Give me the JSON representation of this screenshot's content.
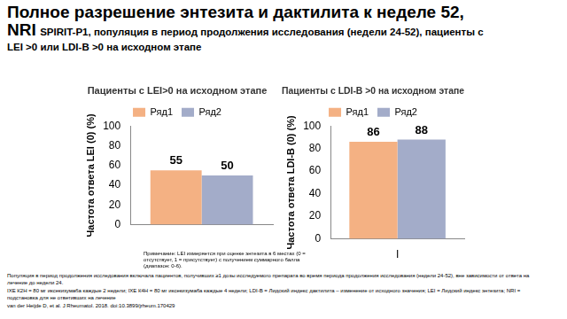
{
  "title": "Полное разрешение энтезита и дактилита к неделе 52, NRI",
  "subtitle": "SPIRIT-P1, популяция в период продолжения исследования (недели 24-52), пациенты с LEI >0 или LDI-B >0 на исходном этапе",
  "chart_data": [
    {
      "type": "bar",
      "title": "Пациенты с LEI>0 на исходном этапе",
      "y_label": "Частота ответа LEI (0) (%)",
      "categories": [
        null
      ],
      "series": [
        {
          "name": "Ряд1",
          "color": "#F4B183",
          "values": [
            55
          ]
        },
        {
          "name": "Ряд2",
          "color": "#A3ACC9",
          "values": [
            50
          ]
        }
      ],
      "ylim": [
        0,
        100
      ],
      "yticks": [
        0,
        20,
        40,
        60,
        80,
        100
      ],
      "grid": false,
      "legend": "top",
      "data_labels": true
    },
    {
      "type": "bar",
      "title": "Пациенты с LDI-B >0 на исходном этапе",
      "y_label": "Частота ответа LDI-B (0) (%)",
      "categories": [
        "I"
      ],
      "series": [
        {
          "name": "Ряд1",
          "color": "#F4B183",
          "values": [
            86
          ]
        },
        {
          "name": "Ряд2",
          "color": "#A3ACC9",
          "values": [
            88
          ]
        }
      ],
      "ylim": [
        0,
        100
      ],
      "yticks": [
        0,
        20,
        40,
        60,
        80,
        100
      ],
      "grid": false,
      "legend": "top",
      "data_labels": true
    }
  ],
  "note": "Примечание: LEI измеряется при оценке энтезита в 6 местах (0 = отсутствует, 1 = присутствует) с получением суммарного балла (диапазон: 0-6).",
  "footnotes": [
    "Популяция в период продолжения исследования включала пациентов, получивших ≥1 дозы исследуемого препарата во время периода продолжения исследования (недели 24-52), вне зависимости от ответа на лечение до недели 24.",
    "IXE К2Н = 80 мг иксекизумаба каждые 2 недели; IXE К4Н = 80 мг иксекизумаба каждые 4 недели; LDI-B = Лидский индекс дактилита – изменение от исходного значения; LEI = Лидский индекс энтезита; NRI = подстановка для не ответивших на лечение",
    "van der Heijde D, et al. J Rheumatol. 2018. doi:10.3899/jrheum.170429"
  ]
}
